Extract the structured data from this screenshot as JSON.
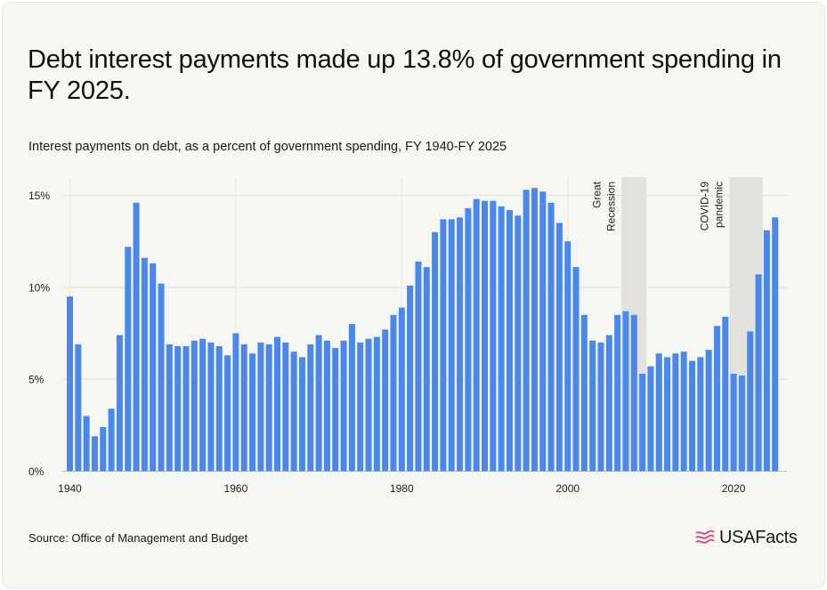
{
  "title": "Debt interest payments made up 13.8% of government spending in FY 2025.",
  "subtitle": "Interest payments on debt, as a percent of government spending, FY 1940-FY 2025",
  "source": "Source: Office of Management and Budget",
  "brand": "USAFacts",
  "colors": {
    "bar": "#4b88ec",
    "shade": "#e2e2dc",
    "background": "#f6f6f2"
  },
  "chart_data": {
    "type": "bar",
    "title": "Debt interest payments made up 13.8% of government spending in FY 2025.",
    "subtitle": "Interest payments on debt, as a percent of government spending, FY 1940-FY 2025",
    "xlabel": "",
    "ylabel": "",
    "ylim": [
      0,
      15.5
    ],
    "grid": "horizontal",
    "y_ticks": [
      "0%",
      "5%",
      "10%",
      "15%"
    ],
    "y_tick_values": [
      0,
      5,
      10,
      15
    ],
    "x_ticks": [
      "1940",
      "1960",
      "1980",
      "2000",
      "2020"
    ],
    "x_tick_values": [
      1940,
      1960,
      1980,
      2000,
      2020
    ],
    "x": [
      1940,
      1941,
      1942,
      1943,
      1944,
      1945,
      1946,
      1947,
      1948,
      1949,
      1950,
      1951,
      1952,
      1953,
      1954,
      1955,
      1956,
      1957,
      1958,
      1959,
      1960,
      1961,
      1962,
      1963,
      1964,
      1965,
      1966,
      1967,
      1968,
      1969,
      1970,
      1971,
      1972,
      1973,
      1974,
      1975,
      1976,
      1977,
      1978,
      1979,
      1980,
      1981,
      1982,
      1983,
      1984,
      1985,
      1986,
      1987,
      1988,
      1989,
      1990,
      1991,
      1992,
      1993,
      1994,
      1995,
      1996,
      1997,
      1998,
      1999,
      2000,
      2001,
      2002,
      2003,
      2004,
      2005,
      2006,
      2007,
      2008,
      2009,
      2010,
      2011,
      2012,
      2013,
      2014,
      2015,
      2016,
      2017,
      2018,
      2019,
      2020,
      2021,
      2022,
      2023,
      2024,
      2025
    ],
    "values": [
      9.5,
      6.9,
      3.0,
      1.9,
      2.4,
      3.4,
      7.4,
      12.2,
      14.6,
      11.6,
      11.3,
      10.2,
      6.9,
      6.8,
      6.8,
      7.1,
      7.2,
      7.0,
      6.8,
      6.3,
      7.5,
      6.9,
      6.4,
      7.0,
      6.9,
      7.3,
      7.0,
      6.5,
      6.2,
      6.9,
      7.4,
      7.1,
      6.7,
      7.1,
      8.0,
      7.0,
      7.2,
      7.3,
      7.7,
      8.5,
      8.9,
      10.1,
      11.4,
      11.1,
      13.0,
      13.7,
      13.7,
      13.8,
      14.3,
      14.8,
      14.7,
      14.7,
      14.4,
      14.2,
      13.9,
      15.3,
      15.4,
      15.2,
      14.6,
      13.5,
      12.5,
      11.1,
      8.5,
      7.1,
      7.0,
      7.4,
      8.5,
      8.7,
      8.5,
      5.3,
      5.7,
      6.4,
      6.2,
      6.4,
      6.5,
      6.0,
      6.2,
      6.6,
      7.9,
      8.4,
      5.3,
      5.2,
      7.6,
      10.7,
      13.1,
      13.8
    ],
    "annotations": [
      {
        "label_lines": [
          "Great",
          "Recession"
        ],
        "start": 2007,
        "end": 2009
      },
      {
        "label_lines": [
          "COVID-19",
          "pandemic"
        ],
        "start": 2020,
        "end": 2023
      }
    ]
  }
}
